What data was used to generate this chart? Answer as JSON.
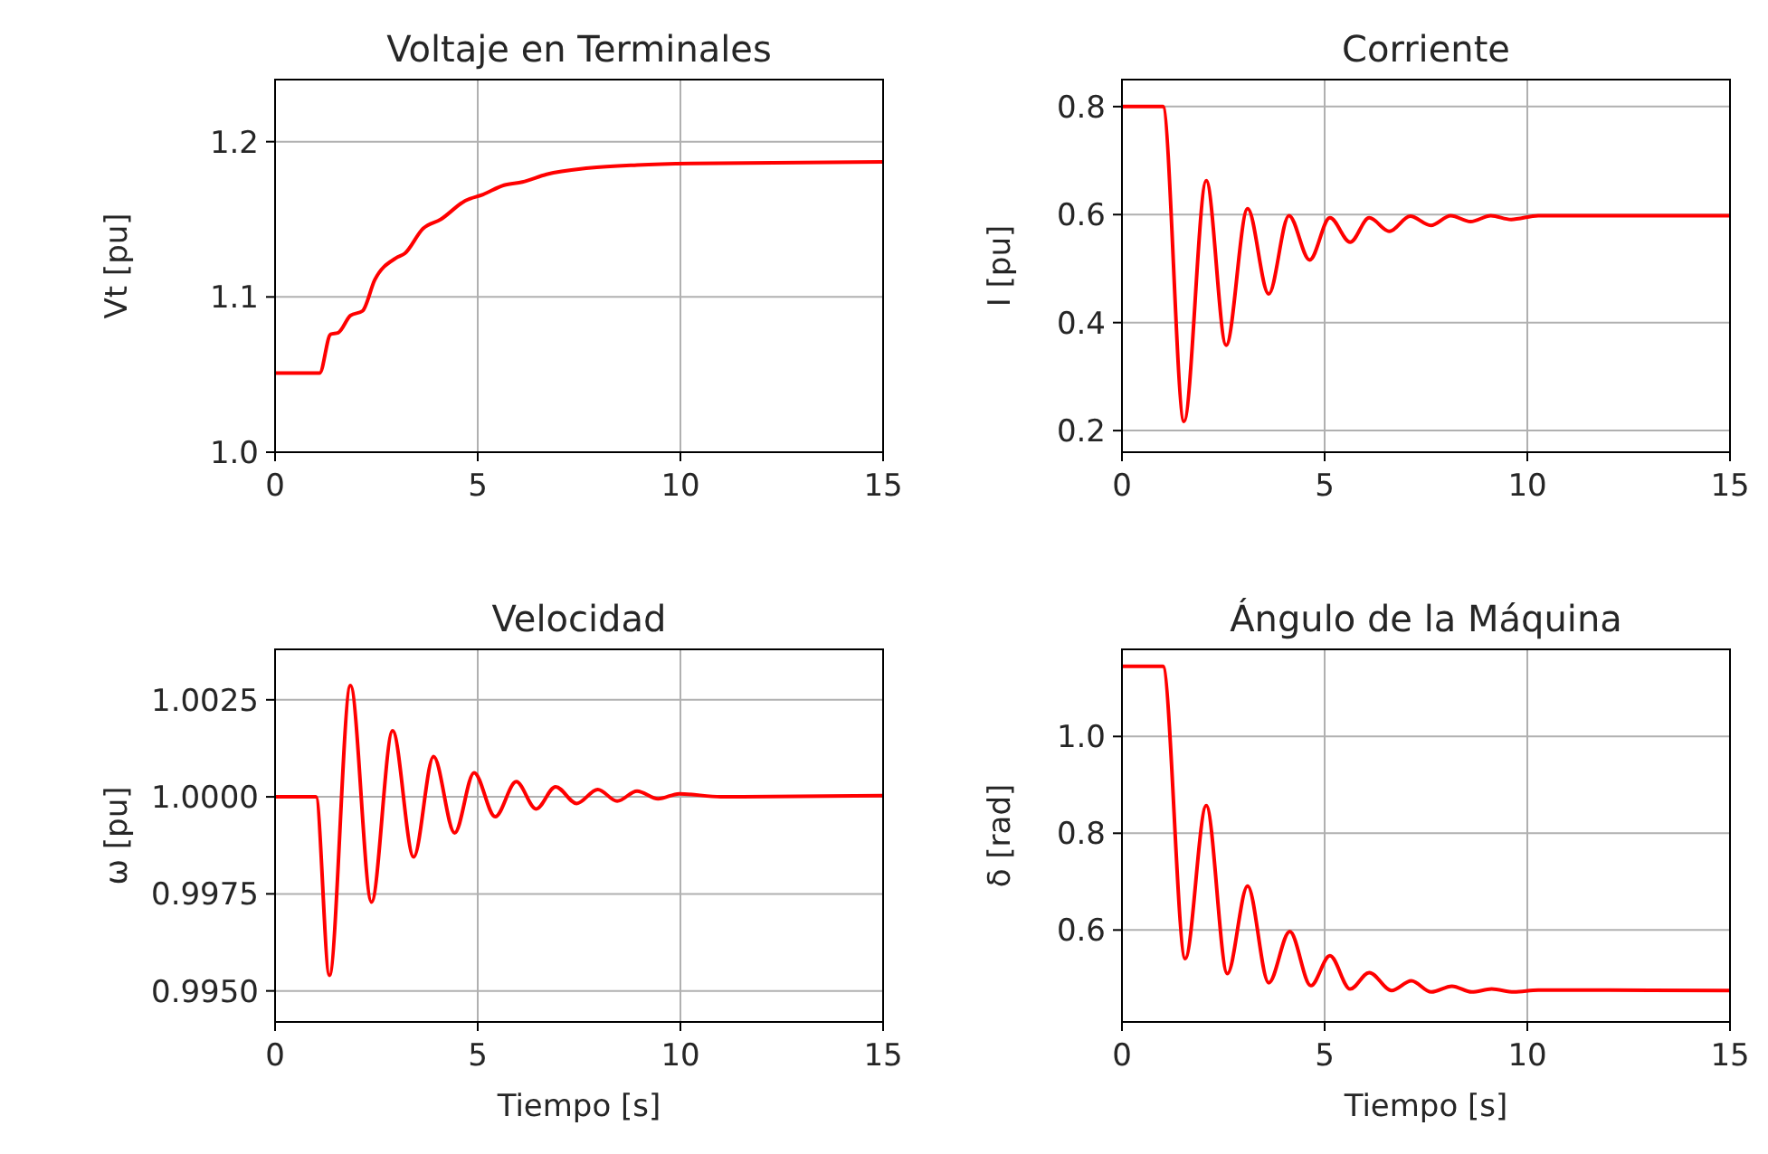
{
  "chart_data": [
    {
      "type": "line",
      "title": "Voltaje en Terminales",
      "ylabel": "Vt [pu]",
      "grid": true,
      "xlim": [
        0,
        15
      ],
      "xticks": [
        0,
        5,
        10,
        15
      ],
      "ylim": [
        1.0,
        1.24
      ],
      "yticks": [
        {
          "value": 1.0,
          "label": "1.0"
        },
        {
          "value": 1.1,
          "label": "1.1"
        },
        {
          "value": 1.2,
          "label": "1.2"
        }
      ],
      "x": [
        0,
        1.1,
        1.37,
        1.56,
        1.86,
        2.16,
        2.46,
        2.98,
        3.2,
        3.65,
        4.09,
        4.69,
        5.13,
        5.65,
        6.1,
        6.7,
        7.74,
        8.93,
        10.27,
        15
      ],
      "series": [
        {
          "color": "#ff0000",
          "values": [
            1.051,
            1.051,
            1.076,
            1.077,
            1.088,
            1.091,
            1.111,
            1.125,
            1.128,
            1.144,
            1.15,
            1.162,
            1.166,
            1.172,
            1.174,
            1.179,
            1.183,
            1.185,
            1.186,
            1.187
          ]
        }
      ]
    },
    {
      "type": "line",
      "title": "Corriente",
      "ylabel": "I [pu]",
      "grid": true,
      "xlim": [
        0,
        15
      ],
      "xticks": [
        0,
        5,
        10,
        15
      ],
      "ylim": [
        0.16,
        0.85
      ],
      "yticks": [
        0.2,
        0.4,
        0.6,
        0.8
      ],
      "x": [
        0,
        1.01,
        1.53,
        2.08,
        2.57,
        3.1,
        3.62,
        4.12,
        4.63,
        5.13,
        5.63,
        6.1,
        6.6,
        7.11,
        7.62,
        8.11,
        8.6,
        9.1,
        9.6,
        10.27,
        15
      ],
      "series": [
        {
          "color": "#ff0000",
          "values": [
            0.8,
            0.8,
            0.217,
            0.663,
            0.358,
            0.611,
            0.453,
            0.598,
            0.516,
            0.594,
            0.549,
            0.594,
            0.569,
            0.597,
            0.58,
            0.598,
            0.587,
            0.598,
            0.591,
            0.598,
            0.598
          ]
        }
      ]
    },
    {
      "type": "line",
      "title": "Velocidad",
      "xlabel": "Tiempo [s]",
      "ylabel": "ω [pu]",
      "grid": true,
      "xlim": [
        0,
        15
      ],
      "xticks": [
        0,
        5,
        10,
        15
      ],
      "ylim": [
        0.9942,
        1.0038
      ],
      "yticks": [
        {
          "value": 0.995,
          "label": "0.9950"
        },
        {
          "value": 0.9975,
          "label": "0.9975"
        },
        {
          "value": 1.0,
          "label": "1.0000"
        },
        {
          "value": 1.0025,
          "label": "1.0025"
        }
      ],
      "x": [
        0,
        1.01,
        1.34,
        1.86,
        2.38,
        2.9,
        3.42,
        3.91,
        4.43,
        4.91,
        5.43,
        5.95,
        6.44,
        6.92,
        7.44,
        7.96,
        8.44,
        8.93,
        9.45,
        9.97,
        11.0,
        15
      ],
      "series": [
        {
          "color": "#ff0000",
          "values": [
            1.0,
            1.0,
            0.9954,
            1.00287,
            0.99729,
            1.0017,
            0.99845,
            1.00104,
            0.99907,
            1.00062,
            0.99949,
            1.00039,
            0.99969,
            1.00026,
            0.99983,
            1.00019,
            0.99989,
            1.00015,
            0.99995,
            1.00008,
            1.0,
            1.00003
          ]
        }
      ]
    },
    {
      "type": "line",
      "title": "Ángulo de la Máquina",
      "xlabel": "Tiempo [s]",
      "ylabel": "δ [rad]",
      "grid": true,
      "xlim": [
        0,
        15
      ],
      "xticks": [
        0,
        5,
        10,
        15
      ],
      "ylim": [
        0.41,
        1.18
      ],
      "yticks": [
        0.6,
        0.8,
        {
          "value": 1.0,
          "label": "1.0"
        }
      ],
      "x": [
        0,
        1.01,
        1.56,
        2.08,
        2.6,
        3.1,
        3.62,
        4.14,
        4.66,
        5.13,
        5.63,
        6.1,
        6.65,
        7.14,
        7.63,
        8.14,
        8.63,
        9.12,
        9.67,
        10.27,
        15
      ],
      "series": [
        {
          "color": "#ff0000",
          "values": [
            1.145,
            1.145,
            0.541,
            0.857,
            0.51,
            0.691,
            0.491,
            0.597,
            0.485,
            0.547,
            0.478,
            0.512,
            0.475,
            0.495,
            0.472,
            0.484,
            0.472,
            0.478,
            0.472,
            0.476,
            0.475
          ]
        }
      ]
    }
  ]
}
